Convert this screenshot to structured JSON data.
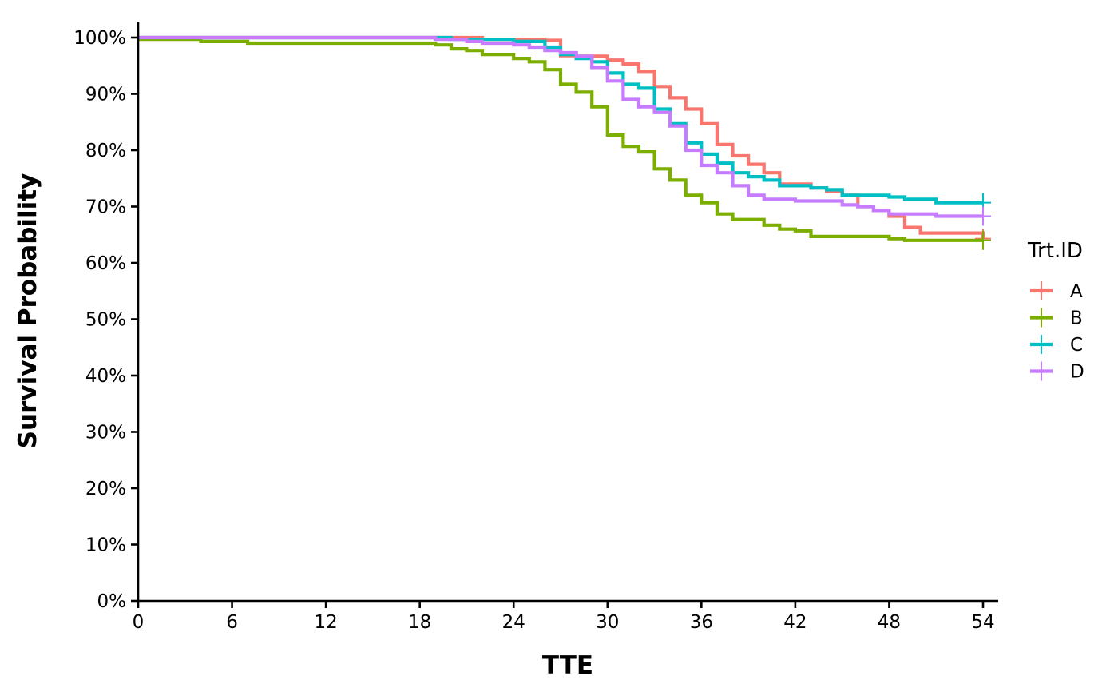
{
  "chart_data": {
    "type": "line",
    "subtype": "step",
    "title": "",
    "xlabel": "TTE",
    "ylabel": "Survival Probability",
    "xlim": [
      0,
      54
    ],
    "ylim": [
      0,
      1
    ],
    "x_ticks": [
      0,
      6,
      12,
      18,
      24,
      30,
      36,
      42,
      48,
      54
    ],
    "y_ticks": [
      0,
      0.1,
      0.2,
      0.3,
      0.4,
      0.5,
      0.6,
      0.7,
      0.8,
      0.9,
      1.0
    ],
    "y_tick_labels": [
      "0%",
      "10%",
      "20%",
      "30%",
      "40%",
      "50%",
      "60%",
      "70%",
      "80%",
      "90%",
      "100%"
    ],
    "grid": false,
    "legend_position": "right",
    "legend_title": "Trt.ID",
    "series": [
      {
        "name": "A",
        "color": "#F8766D",
        "censor_x": 54,
        "x": [
          0,
          22,
          26,
          27,
          28,
          30,
          31,
          32,
          33,
          34,
          35,
          36,
          37,
          38,
          39,
          40,
          41,
          43,
          44,
          45,
          46,
          47,
          48,
          49,
          50,
          54
        ],
        "y": [
          1.0,
          0.997,
          0.995,
          0.968,
          0.967,
          0.96,
          0.953,
          0.94,
          0.913,
          0.893,
          0.873,
          0.847,
          0.81,
          0.79,
          0.775,
          0.76,
          0.74,
          0.733,
          0.727,
          0.72,
          0.7,
          0.693,
          0.683,
          0.663,
          0.653,
          0.643
        ]
      },
      {
        "name": "B",
        "color": "#7CAE00",
        "censor_x": 54,
        "x": [
          0,
          4,
          7,
          19,
          20,
          21,
          22,
          24,
          25,
          26,
          27,
          28,
          29,
          30,
          31,
          32,
          33,
          34,
          35,
          36,
          37,
          38,
          40,
          41,
          42,
          43,
          48,
          49,
          54
        ],
        "y": [
          0.997,
          0.993,
          0.99,
          0.987,
          0.98,
          0.977,
          0.97,
          0.963,
          0.957,
          0.943,
          0.917,
          0.903,
          0.877,
          0.827,
          0.807,
          0.797,
          0.767,
          0.747,
          0.72,
          0.707,
          0.687,
          0.677,
          0.667,
          0.66,
          0.657,
          0.647,
          0.643,
          0.64,
          0.64
        ]
      },
      {
        "name": "C",
        "color": "#00BFC4",
        "censor_x": 54,
        "x": [
          0,
          20,
          24,
          26,
          27,
          28,
          29,
          30,
          31,
          32,
          33,
          34,
          35,
          36,
          37,
          38,
          39,
          40,
          41,
          43,
          44,
          45,
          48,
          49,
          51,
          54
        ],
        "y": [
          1.0,
          0.997,
          0.993,
          0.983,
          0.97,
          0.963,
          0.957,
          0.937,
          0.917,
          0.91,
          0.873,
          0.847,
          0.813,
          0.793,
          0.777,
          0.76,
          0.753,
          0.747,
          0.737,
          0.733,
          0.73,
          0.72,
          0.717,
          0.713,
          0.707,
          0.707
        ]
      },
      {
        "name": "D",
        "color": "#C77CFF",
        "censor_x": 54,
        "x": [
          0,
          19,
          21,
          22,
          24,
          25,
          26,
          27,
          28,
          29,
          30,
          31,
          32,
          33,
          34,
          35,
          36,
          37,
          38,
          39,
          40,
          42,
          45,
          46,
          47,
          48,
          51,
          54
        ],
        "y": [
          1.0,
          0.997,
          0.993,
          0.99,
          0.987,
          0.983,
          0.977,
          0.973,
          0.967,
          0.947,
          0.923,
          0.89,
          0.877,
          0.867,
          0.843,
          0.8,
          0.773,
          0.76,
          0.737,
          0.72,
          0.713,
          0.71,
          0.703,
          0.7,
          0.693,
          0.687,
          0.683,
          0.683
        ]
      }
    ]
  }
}
